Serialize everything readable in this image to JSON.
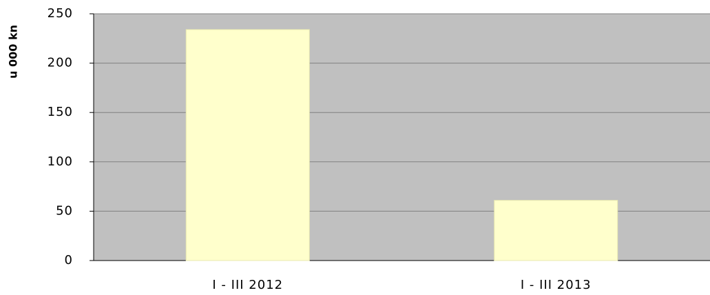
{
  "chart_data": {
    "type": "bar",
    "y_label": "u 000 kn",
    "categories": [
      "I - III 2012",
      "I - III 2013"
    ],
    "values": [
      234,
      61
    ],
    "color": "#ffffcc",
    "ylim": [
      0,
      250
    ],
    "yticks": [
      0,
      50,
      100,
      150,
      200,
      250
    ],
    "grid": true
  }
}
